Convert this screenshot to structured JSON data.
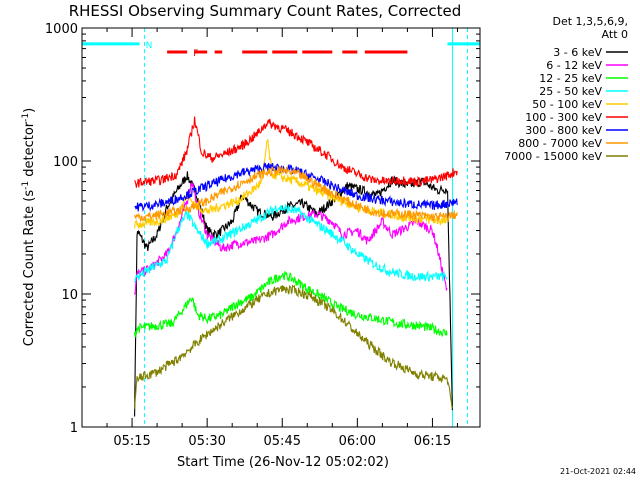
{
  "chart_data": {
    "type": "line",
    "title": "RHESSI Observing Summary Count Rates, Corrected",
    "xlabel": "Start Time (26-Nov-12 05:02:02)",
    "ylabel": "Corrected Count Rate (s⁻¹ detector⁻¹)",
    "ylabel_parts": [
      "Corrected Count Rate (s",
      "-1",
      " detector",
      "-1",
      ")"
    ],
    "yscale": "log",
    "ylim": [
      1,
      1000
    ],
    "xlim_minutes": [
      5.0,
      84.5
    ],
    "y_ticks": [
      {
        "value": 1,
        "label": "1"
      },
      {
        "value": 10,
        "label": "10"
      },
      {
        "value": 100,
        "label": "100"
      },
      {
        "value": 1000,
        "label": "1000"
      }
    ],
    "x_ticks": [
      {
        "value": 15,
        "label": "05:15"
      },
      {
        "value": 30,
        "label": "05:30"
      },
      {
        "value": 45,
        "label": "05:45"
      },
      {
        "value": 60,
        "label": "06:00"
      },
      {
        "value": 75,
        "label": "06:15"
      },
      {
        "value": 90,
        "label": "06:30"
      }
    ],
    "legend_header": [
      "Det 1,3,5,6,9,",
      "Att 0"
    ],
    "series": [
      {
        "name": "3 - 6 keV",
        "color": "#000000",
        "points": [
          [
            15.5,
            1.3
          ],
          [
            16,
            30
          ],
          [
            18,
            22
          ],
          [
            20,
            28
          ],
          [
            22,
            45
          ],
          [
            24,
            60
          ],
          [
            26,
            78
          ],
          [
            28,
            55
          ],
          [
            30,
            30
          ],
          [
            32,
            28
          ],
          [
            35,
            35
          ],
          [
            37,
            55
          ],
          [
            40,
            42
          ],
          [
            43,
            38
          ],
          [
            46,
            45
          ],
          [
            49,
            48
          ],
          [
            52,
            40
          ],
          [
            55,
            50
          ],
          [
            58,
            65
          ],
          [
            61,
            60
          ],
          [
            64,
            55
          ],
          [
            67,
            72
          ],
          [
            70,
            65
          ],
          [
            73,
            70
          ],
          [
            76,
            60
          ],
          [
            78,
            62
          ],
          [
            79,
            1.3
          ]
        ]
      },
      {
        "name": "6 - 12 keV",
        "color": "#ff00ff",
        "points": [
          [
            15.5,
            10
          ],
          [
            16,
            14
          ],
          [
            19,
            16
          ],
          [
            22,
            20
          ],
          [
            24,
            30
          ],
          [
            26,
            50
          ],
          [
            27,
            72
          ],
          [
            28,
            45
          ],
          [
            30,
            28
          ],
          [
            33,
            22
          ],
          [
            36,
            24
          ],
          [
            40,
            25
          ],
          [
            43,
            28
          ],
          [
            46,
            35
          ],
          [
            49,
            38
          ],
          [
            52,
            40
          ],
          [
            55,
            35
          ],
          [
            57,
            28
          ],
          [
            60,
            30
          ],
          [
            62,
            25
          ],
          [
            65,
            35
          ],
          [
            67,
            28
          ],
          [
            70,
            32
          ],
          [
            72,
            35
          ],
          [
            75,
            30
          ],
          [
            76,
            22
          ],
          [
            78,
            10
          ]
        ]
      },
      {
        "name": "12 - 25 keV",
        "color": "#00ff00",
        "points": [
          [
            15.5,
            5
          ],
          [
            16,
            5.5
          ],
          [
            20,
            5.8
          ],
          [
            23,
            6
          ],
          [
            25,
            7.5
          ],
          [
            27,
            9.5
          ],
          [
            28,
            7
          ],
          [
            30,
            6.5
          ],
          [
            33,
            7
          ],
          [
            36,
            8.5
          ],
          [
            39,
            9.5
          ],
          [
            42,
            12
          ],
          [
            45,
            14
          ],
          [
            47,
            13
          ],
          [
            50,
            11
          ],
          [
            53,
            9.5
          ],
          [
            56,
            8
          ],
          [
            60,
            7
          ],
          [
            64,
            6.5
          ],
          [
            68,
            6
          ],
          [
            72,
            5.8
          ],
          [
            75,
            5.5
          ],
          [
            78,
            5
          ]
        ]
      },
      {
        "name": "25 - 50 keV",
        "color": "#00ffff",
        "points": [
          [
            15.5,
            13
          ],
          [
            18,
            15
          ],
          [
            22,
            18
          ],
          [
            24,
            30
          ],
          [
            26,
            40
          ],
          [
            28,
            30
          ],
          [
            30,
            24
          ],
          [
            33,
            26
          ],
          [
            36,
            30
          ],
          [
            40,
            36
          ],
          [
            44,
            45
          ],
          [
            48,
            42
          ],
          [
            51,
            35
          ],
          [
            54,
            30
          ],
          [
            57,
            25
          ],
          [
            60,
            20
          ],
          [
            63,
            17
          ],
          [
            66,
            15
          ],
          [
            69,
            14
          ],
          [
            72,
            13.5
          ],
          [
            75,
            13.5
          ],
          [
            78,
            13.5
          ]
        ]
      },
      {
        "name": "50 - 100 keV",
        "color": "#ffcc00",
        "points": [
          [
            15.5,
            33
          ],
          [
            18,
            34
          ],
          [
            21,
            36
          ],
          [
            24,
            40
          ],
          [
            26,
            55
          ],
          [
            28,
            45
          ],
          [
            30,
            42
          ],
          [
            33,
            46
          ],
          [
            36,
            50
          ],
          [
            39,
            60
          ],
          [
            41,
            70
          ],
          [
            42,
            145
          ],
          [
            43,
            80
          ],
          [
            45,
            75
          ],
          [
            48,
            70
          ],
          [
            51,
            62
          ],
          [
            54,
            55
          ],
          [
            57,
            50
          ],
          [
            60,
            45
          ],
          [
            63,
            42
          ],
          [
            66,
            40
          ],
          [
            69,
            38
          ],
          [
            72,
            37
          ],
          [
            75,
            36
          ],
          [
            78,
            35
          ]
        ]
      },
      {
        "name": "100 - 300 keV",
        "color": "#ff0000",
        "points": [
          [
            15.5,
            68
          ],
          [
            18,
            70
          ],
          [
            21,
            72
          ],
          [
            24,
            80
          ],
          [
            26,
            120
          ],
          [
            27.5,
            205
          ],
          [
            29,
            115
          ],
          [
            31,
            105
          ],
          [
            34,
            115
          ],
          [
            37,
            130
          ],
          [
            40,
            160
          ],
          [
            42,
            195
          ],
          [
            45,
            175
          ],
          [
            48,
            155
          ],
          [
            51,
            130
          ],
          [
            54,
            110
          ],
          [
            57,
            90
          ],
          [
            60,
            80
          ],
          [
            63,
            72
          ],
          [
            66,
            70
          ],
          [
            69,
            72
          ],
          [
            72,
            70
          ],
          [
            75,
            72
          ],
          [
            78,
            78
          ],
          [
            80,
            85
          ]
        ]
      },
      {
        "name": "300 - 800 keV",
        "color": "#0000ff",
        "points": [
          [
            15.5,
            45
          ],
          [
            18,
            46
          ],
          [
            21,
            48
          ],
          [
            24,
            52
          ],
          [
            27,
            58
          ],
          [
            30,
            65
          ],
          [
            33,
            72
          ],
          [
            36,
            80
          ],
          [
            39,
            85
          ],
          [
            42,
            90
          ],
          [
            45,
            88
          ],
          [
            48,
            84
          ],
          [
            51,
            76
          ],
          [
            54,
            68
          ],
          [
            57,
            60
          ],
          [
            60,
            55
          ],
          [
            63,
            52
          ],
          [
            66,
            50
          ],
          [
            69,
            48
          ],
          [
            72,
            47
          ],
          [
            75,
            46
          ],
          [
            78,
            48
          ],
          [
            80,
            50
          ]
        ]
      },
      {
        "name": "800 - 7000 keV",
        "color": "#ff9900",
        "points": [
          [
            15.5,
            38
          ],
          [
            18,
            38
          ],
          [
            21,
            40
          ],
          [
            24,
            42
          ],
          [
            27,
            45
          ],
          [
            30,
            50
          ],
          [
            33,
            58
          ],
          [
            36,
            66
          ],
          [
            39,
            75
          ],
          [
            42,
            82
          ],
          [
            45,
            85
          ],
          [
            48,
            80
          ],
          [
            51,
            70
          ],
          [
            54,
            60
          ],
          [
            57,
            52
          ],
          [
            60,
            46
          ],
          [
            63,
            42
          ],
          [
            66,
            40
          ],
          [
            69,
            40
          ],
          [
            72,
            39
          ],
          [
            75,
            38
          ],
          [
            78,
            38
          ],
          [
            80,
            40
          ]
        ]
      },
      {
        "name": "7000 - 15000 keV",
        "color": "#808000",
        "points": [
          [
            15.5,
            1.4
          ],
          [
            16,
            2.3
          ],
          [
            20,
            2.6
          ],
          [
            24,
            3.2
          ],
          [
            27,
            4
          ],
          [
            30,
            5
          ],
          [
            33,
            6
          ],
          [
            36,
            7.2
          ],
          [
            39,
            8.5
          ],
          [
            42,
            10
          ],
          [
            45,
            11
          ],
          [
            48,
            10.5
          ],
          [
            51,
            9.5
          ],
          [
            54,
            8
          ],
          [
            57,
            6.5
          ],
          [
            60,
            5
          ],
          [
            63,
            4
          ],
          [
            66,
            3.2
          ],
          [
            69,
            2.8
          ],
          [
            72,
            2.5
          ],
          [
            75,
            2.4
          ],
          [
            78,
            2.3
          ],
          [
            79,
            1.3
          ]
        ]
      }
    ],
    "annotations": [
      {
        "type": "bar",
        "label": "N",
        "color": "#00ffff",
        "segments": [
          [
            5,
            16.5
          ],
          [
            78,
            84.5
          ]
        ],
        "value": 760
      },
      {
        "type": "bar",
        "label": "F",
        "color": "#ff0000",
        "segments": [
          [
            22,
            26
          ],
          [
            27.5,
            30
          ],
          [
            31.5,
            33
          ],
          [
            37,
            42
          ],
          [
            43,
            48
          ],
          [
            49,
            55
          ],
          [
            57,
            60
          ],
          [
            61.5,
            70
          ]
        ],
        "value": 660
      },
      {
        "type": "vline",
        "color": "#00ffff",
        "style": "dashed",
        "x": [
          17.5,
          82
        ]
      },
      {
        "type": "vline",
        "color": "#00ffff",
        "style": "solid",
        "x": [
          79
        ]
      }
    ],
    "timestamp": "21-Oct-2021 02:44"
  }
}
